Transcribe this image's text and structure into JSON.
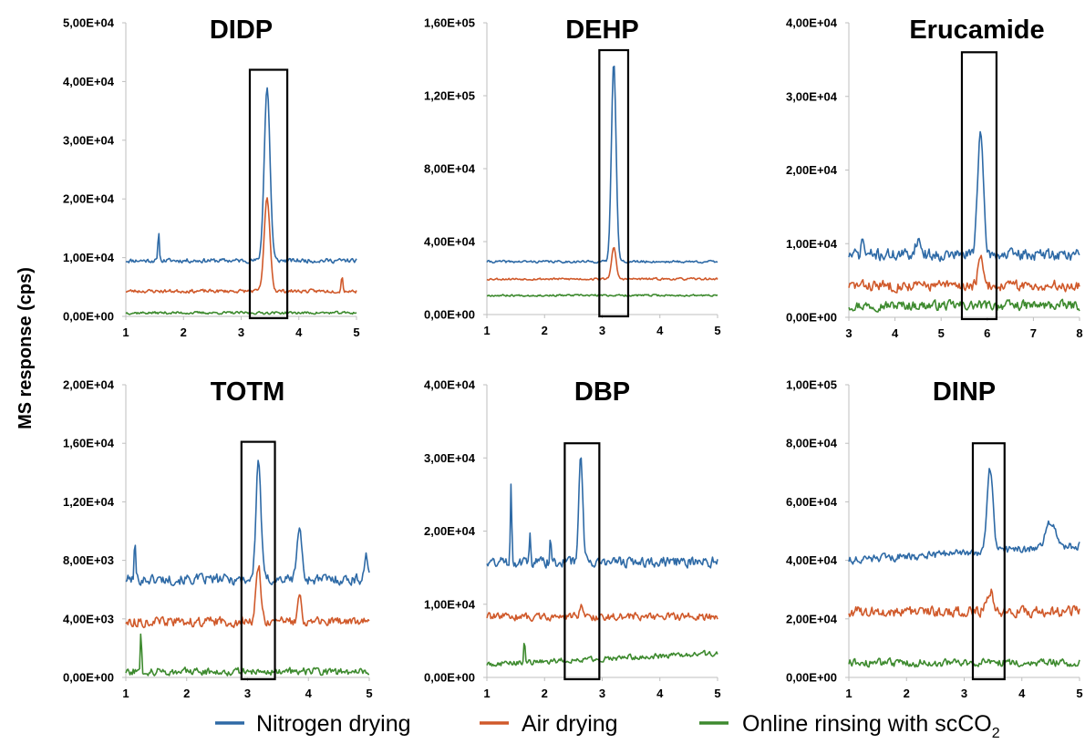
{
  "chart_data": {
    "type": "line",
    "ylabel": "MS response (cps)",
    "legend": {
      "placement": "bottom",
      "entries": [
        {
          "label": "Nitrogen drying",
          "color": "#2e6aa6"
        },
        {
          "label": "Air drying",
          "color": "#d0592a"
        },
        {
          "label": "Online rinsing with scCO",
          "subscript": "2",
          "color": "#3d8a2e"
        }
      ]
    },
    "panels": [
      {
        "title": "DIDP",
        "ylim": [
          0,
          50000
        ],
        "yticks": [
          "0,00E+00",
          "1,00E+04",
          "2,00E+04",
          "3,00E+04",
          "4,00E+04",
          "5,00E+04"
        ],
        "xlim": [
          1,
          5
        ],
        "xticks": [
          "1",
          "2",
          "3",
          "4",
          "5"
        ],
        "highlight": {
          "x": [
            3.15,
            3.8
          ],
          "y_top": 42000
        },
        "series": [
          {
            "baseline": 9500,
            "noise": 500,
            "seed": 11,
            "peaks": [
              {
                "x": 3.45,
                "h": 29500,
                "w": 0.05
              },
              {
                "x": 1.57,
                "h": 5000,
                "w": 0.012
              }
            ]
          },
          {
            "baseline": 4300,
            "noise": 400,
            "seed": 23,
            "peaks": [
              {
                "x": 3.45,
                "h": 15800,
                "w": 0.05
              },
              {
                "x": 4.75,
                "h": 2500,
                "w": 0.015
              }
            ]
          },
          {
            "baseline": 600,
            "noise": 300,
            "seed": 37,
            "peaks": []
          }
        ]
      },
      {
        "title": "DEHP",
        "ylim": [
          0,
          160000
        ],
        "yticks": [
          "0,00E+00",
          "4,00E+04",
          "8,00E+04",
          "1,20E+05",
          "1,60E+05"
        ],
        "xlim": [
          1,
          5
        ],
        "xticks": [
          "1",
          "2",
          "3",
          "4",
          "5"
        ],
        "highlight": {
          "x": [
            2.95,
            3.45
          ],
          "y_top": 145000
        },
        "series": [
          {
            "baseline": 29000,
            "noise": 900,
            "seed": 41,
            "peaks": [
              {
                "x": 3.2,
                "h": 110000,
                "w": 0.04
              }
            ]
          },
          {
            "baseline": 19500,
            "noise": 800,
            "seed": 53,
            "peaks": [
              {
                "x": 3.2,
                "h": 17000,
                "w": 0.04
              }
            ]
          },
          {
            "baseline": 10500,
            "noise": 700,
            "seed": 67,
            "peaks": []
          }
        ]
      },
      {
        "title": "Erucamide",
        "ylim": [
          0,
          40000
        ],
        "yticks": [
          "0,00E+00",
          "1,00E+04",
          "2,00E+04",
          "3,00E+04",
          "4,00E+04"
        ],
        "xlim": [
          3,
          8
        ],
        "xticks": [
          "3",
          "4",
          "5",
          "6",
          "7",
          "8"
        ],
        "highlight": {
          "x": [
            5.45,
            6.2
          ],
          "y_top": 36000
        },
        "series": [
          {
            "baseline": 8500,
            "noise": 1100,
            "seed": 71,
            "peaks": [
              {
                "x": 5.85,
                "h": 16500,
                "w": 0.05
              },
              {
                "x": 3.3,
                "h": 2500,
                "w": 0.02
              },
              {
                "x": 4.5,
                "h": 2000,
                "w": 0.05
              }
            ]
          },
          {
            "baseline": 4300,
            "noise": 1000,
            "seed": 83,
            "peaks": [
              {
                "x": 5.85,
                "h": 3800,
                "w": 0.04
              }
            ]
          },
          {
            "baseline": 1600,
            "noise": 900,
            "seed": 97,
            "peaks": []
          }
        ]
      },
      {
        "title": "TOTM",
        "ylim": [
          0,
          20000
        ],
        "yticks": [
          "0,00E+00",
          "4,00E+03",
          "8,00E+03",
          "1,20E+04",
          "1,60E+04",
          "2,00E+04"
        ],
        "xlim": [
          1,
          5
        ],
        "xticks": [
          "1",
          "2",
          "3",
          "4",
          "5"
        ],
        "highlight": {
          "x": [
            2.9,
            3.45
          ],
          "y_top": 16100
        },
        "series": [
          {
            "baseline": 6700,
            "noise": 500,
            "seed": 101,
            "peaks": [
              {
                "x": 3.18,
                "h": 8200,
                "w": 0.04
              },
              {
                "x": 1.15,
                "h": 2700,
                "w": 0.012
              },
              {
                "x": 3.85,
                "h": 3500,
                "w": 0.04
              },
              {
                "x": 4.95,
                "h": 1700,
                "w": 0.03
              }
            ]
          },
          {
            "baseline": 3800,
            "noise": 450,
            "seed": 113,
            "peaks": [
              {
                "x": 3.18,
                "h": 3800,
                "w": 0.04
              },
              {
                "x": 3.85,
                "h": 2200,
                "w": 0.03
              }
            ]
          },
          {
            "baseline": 400,
            "noise": 350,
            "seed": 127,
            "peaks": [
              {
                "x": 1.25,
                "h": 3800,
                "w": 0.008
              }
            ]
          }
        ]
      },
      {
        "title": "DBP",
        "ylim": [
          0,
          40000
        ],
        "yticks": [
          "0,00E+00",
          "1,00E+04",
          "2,00E+04",
          "3,00E+04",
          "4,00E+04"
        ],
        "xlim": [
          1,
          5
        ],
        "xticks": [
          "1",
          "2",
          "3",
          "4",
          "5"
        ],
        "highlight": {
          "x": [
            2.35,
            2.95
          ],
          "y_top": 32000
        },
        "series": [
          {
            "baseline": 15800,
            "noise": 1000,
            "seed": 131,
            "peaks": [
              {
                "x": 2.63,
                "h": 14200,
                "w": 0.035
              },
              {
                "x": 1.42,
                "h": 11000,
                "w": 0.012
              },
              {
                "x": 1.75,
                "h": 3500,
                "w": 0.012
              },
              {
                "x": 2.1,
                "h": 3000,
                "w": 0.012
              }
            ]
          },
          {
            "baseline": 8300,
            "noise": 700,
            "seed": 139,
            "peaks": [
              {
                "x": 2.63,
                "h": 1500,
                "w": 0.03
              }
            ]
          },
          {
            "baseline": 1800,
            "noise": 500,
            "seed": 149,
            "peaks": [
              {
                "x": 1.65,
                "h": 3000,
                "w": 0.012
              }
            ],
            "trend": 1500
          }
        ]
      },
      {
        "title": "DINP",
        "ylim": [
          0,
          100000
        ],
        "yticks": [
          "0,00E+00",
          "2,00E+04",
          "4,00E+04",
          "6,00E+04",
          "8,00E+04",
          "1,00E+05"
        ],
        "xlim": [
          1,
          5
        ],
        "xticks": [
          "1",
          "2",
          "3",
          "4",
          "5"
        ],
        "highlight": {
          "x": [
            3.15,
            3.7
          ],
          "y_top": 80000
        },
        "series": [
          {
            "baseline": 40000,
            "noise": 1800,
            "seed": 151,
            "peaks": [
              {
                "x": 3.45,
                "h": 28000,
                "w": 0.05
              },
              {
                "x": 4.5,
                "h": 9000,
                "w": 0.08
              }
            ],
            "trend": 5000
          },
          {
            "baseline": 22500,
            "noise": 2500,
            "seed": 163,
            "peaks": [
              {
                "x": 3.45,
                "h": 7000,
                "w": 0.06
              }
            ]
          },
          {
            "baseline": 5000,
            "noise": 1800,
            "seed": 173,
            "peaks": []
          }
        ]
      }
    ]
  }
}
